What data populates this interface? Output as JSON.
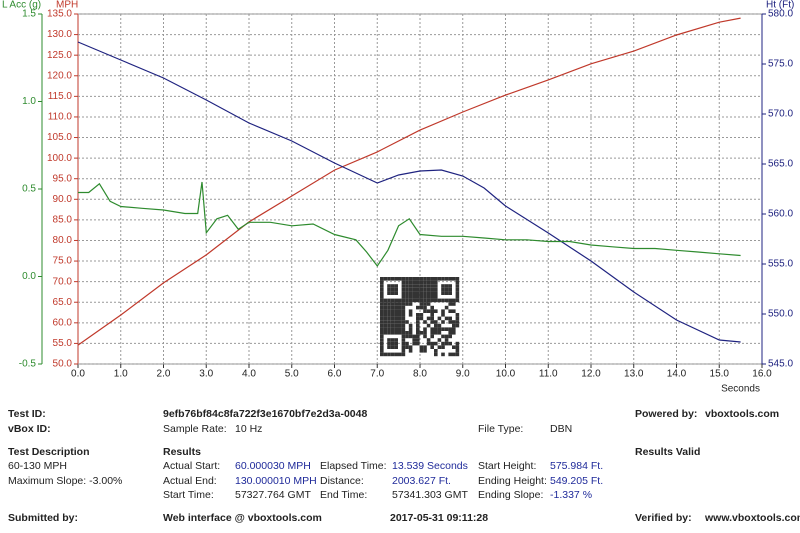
{
  "chart_data": {
    "type": "line",
    "xlabel": "Seconds",
    "ylabel": "MPH",
    "y2label": "Ht (Ft)",
    "y3label": "L Acc (g)",
    "xlim": [
      0,
      16
    ],
    "xticks": [
      {
        "value": 0,
        "label": "0.0"
      },
      {
        "value": 1,
        "label": "1.0"
      },
      {
        "value": 2,
        "label": "2.0"
      },
      {
        "value": 3,
        "label": "3.0"
      },
      {
        "value": 4,
        "label": "4.0"
      },
      {
        "value": 5,
        "label": "5.0"
      },
      {
        "value": 6,
        "label": "6.0"
      },
      {
        "value": 7,
        "label": "7.0"
      },
      {
        "value": 8,
        "label": "8.0"
      },
      {
        "value": 9,
        "label": "9.0"
      },
      {
        "value": 10,
        "label": "10.0"
      },
      {
        "value": 11,
        "label": "11.0"
      },
      {
        "value": 12,
        "label": "12.0"
      },
      {
        "value": 13,
        "label": "13.0"
      },
      {
        "value": 14,
        "label": "14.0"
      },
      {
        "value": 15,
        "label": "15.0"
      },
      {
        "value": 16,
        "label": "16.0"
      }
    ],
    "ylim": [
      50,
      135
    ],
    "yticks": [
      {
        "value": 50,
        "label": "50.0"
      },
      {
        "value": 55,
        "label": "55.0"
      },
      {
        "value": 60,
        "label": "60.0"
      },
      {
        "value": 65,
        "label": "65.0"
      },
      {
        "value": 70,
        "label": "70.0"
      },
      {
        "value": 75,
        "label": "75.0"
      },
      {
        "value": 80,
        "label": "80.0"
      },
      {
        "value": 85,
        "label": "85.0"
      },
      {
        "value": 90,
        "label": "90.0"
      },
      {
        "value": 95,
        "label": "95.0"
      },
      {
        "value": 100,
        "label": "100.0"
      },
      {
        "value": 105,
        "label": "105.0"
      },
      {
        "value": 110,
        "label": "110.0"
      },
      {
        "value": 115,
        "label": "115.0"
      },
      {
        "value": 120,
        "label": "120.0"
      },
      {
        "value": 125,
        "label": "125.0"
      },
      {
        "value": 130,
        "label": "130.0"
      },
      {
        "value": 135,
        "label": "135.0"
      }
    ],
    "y2lim": [
      545,
      580
    ],
    "y2ticks": [
      {
        "value": 545,
        "label": "545.0"
      },
      {
        "value": 550,
        "label": "550.0"
      },
      {
        "value": 555,
        "label": "555.0"
      },
      {
        "value": 560,
        "label": "560.0"
      },
      {
        "value": 565,
        "label": "565.0"
      },
      {
        "value": 570,
        "label": "570.0"
      },
      {
        "value": 575,
        "label": "575.0"
      },
      {
        "value": 580,
        "label": "580.0"
      }
    ],
    "y3lim": [
      -0.5,
      1.5
    ],
    "y3ticks": [
      {
        "value": -0.5,
        "label": "-0.5"
      },
      {
        "value": 0,
        "label": "0.0"
      },
      {
        "value": 0.5,
        "label": "0.5"
      },
      {
        "value": 1,
        "label": "1.0"
      },
      {
        "value": 1.5,
        "label": "1.5"
      }
    ],
    "grid": true,
    "series": [
      {
        "axis": "y",
        "color": "#c0392b",
        "x": [
          0,
          1,
          2,
          3,
          4,
          5,
          6,
          7,
          8,
          9,
          10,
          11,
          12,
          13,
          14,
          15,
          15.5
        ],
        "values": [
          54.6,
          61.9,
          69.7,
          76.5,
          84.5,
          90.8,
          97.1,
          101.5,
          106.8,
          111.2,
          115.3,
          119.0,
          122.9,
          126.0,
          129.9,
          133.0,
          134.0
        ]
      },
      {
        "axis": "y2",
        "color": "#1f2380",
        "x": [
          0,
          1,
          2,
          3,
          4,
          5,
          6,
          7,
          7.5,
          8,
          8.5,
          9,
          9.5,
          10,
          11,
          12,
          13,
          14,
          15,
          15.5
        ],
        "values": [
          577.2,
          575.4,
          573.6,
          571.4,
          569.1,
          567.3,
          565.1,
          563.1,
          563.9,
          564.3,
          564.4,
          563.8,
          562.6,
          560.8,
          558.1,
          555.3,
          552.2,
          549.4,
          547.4,
          547.2
        ]
      },
      {
        "axis": "y3",
        "color": "#2e8b2e",
        "x": [
          0,
          0.25,
          0.5,
          0.75,
          1,
          1.5,
          2,
          2.5,
          2.8,
          2.9,
          3.0,
          3.25,
          3.5,
          3.75,
          4,
          4.5,
          5,
          5.5,
          6,
          6.5,
          6.75,
          7,
          7.25,
          7.5,
          7.75,
          8,
          8.5,
          9,
          9.5,
          10,
          10.5,
          11,
          11.5,
          12,
          12.5,
          13,
          13.5,
          14,
          14.5,
          15,
          15.5
        ],
        "values": [
          0.48,
          0.48,
          0.53,
          0.43,
          0.4,
          0.39,
          0.38,
          0.36,
          0.36,
          0.54,
          0.25,
          0.33,
          0.35,
          0.27,
          0.31,
          0.31,
          0.29,
          0.3,
          0.24,
          0.21,
          0.14,
          0.06,
          0.15,
          0.29,
          0.33,
          0.24,
          0.23,
          0.23,
          0.22,
          0.21,
          0.21,
          0.2,
          0.2,
          0.18,
          0.17,
          0.16,
          0.16,
          0.15,
          0.14,
          0.13,
          0.12
        ]
      }
    ]
  },
  "report": {
    "test_id": {
      "label": "Test ID:",
      "value": "9efb76bf84c8fa722f3e1670bf7e2d3a-0048"
    },
    "vbox_id": {
      "label": "vBox ID:"
    },
    "powered_by": {
      "label": "Powered by:",
      "value": "vboxtools.com"
    },
    "sample_rate": {
      "label": "Sample Rate:",
      "value": "10 Hz"
    },
    "file_type": {
      "label": "File Type:",
      "value": "DBN"
    },
    "test_description": {
      "heading": "Test Description",
      "lines": [
        "60-130 MPH",
        "Maximum Slope: -3.00%"
      ]
    },
    "results": {
      "heading": "Results",
      "fields": [
        {
          "label": "Actual Start:",
          "value": "60.000030 MPH"
        },
        {
          "label": "Elapsed Time:",
          "value": "13.539 Seconds"
        },
        {
          "label": "Start Height:",
          "value": "575.984 Ft."
        },
        {
          "label": "Actual End:",
          "value": "130.000010 MPH"
        },
        {
          "label": "Distance:",
          "value": "2003.627 Ft."
        },
        {
          "label": "Ending Height:",
          "value": "549.205 Ft."
        },
        {
          "label": "Start Time:",
          "value": "57327.764 GMT"
        },
        {
          "label": "End Time:",
          "value": "57341.303 GMT"
        },
        {
          "label": "Ending Slope:",
          "value": "-1.337 %"
        }
      ]
    },
    "results_valid": "Results Valid",
    "footer": {
      "submitted_by": "Submitted by:",
      "web_interface": "Web interface @ vboxtools.com",
      "timestamp": "2017-05-31 09:11:28",
      "verified_by": "Verified by:",
      "verified_value": "www.vboxtools.com"
    }
  }
}
